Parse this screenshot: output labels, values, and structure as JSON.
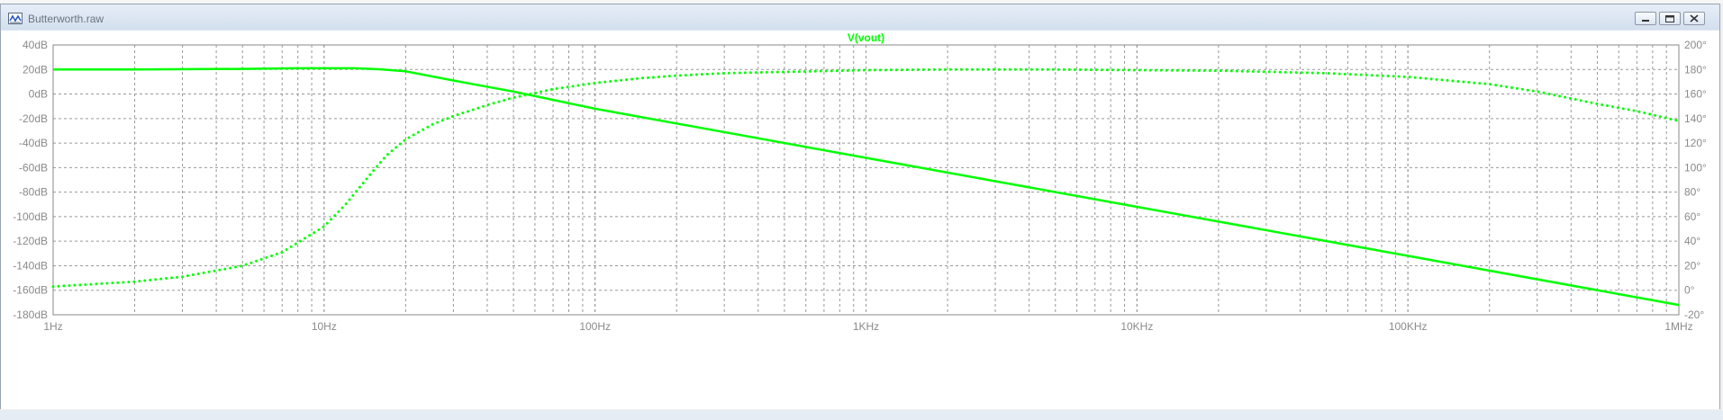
{
  "window": {
    "title": "Butterworth.raw",
    "buttons": [
      "minimize",
      "restore",
      "close"
    ],
    "icons": {
      "app": "waveform-icon",
      "minimize": "minimize-icon",
      "restore": "restore-icon",
      "close": "close-icon"
    }
  },
  "colors": {
    "trace": "#00ff00",
    "grid": "#999999",
    "axis_text": "#8a8a8a",
    "plot_bg": "#ffffff"
  },
  "chart_data": {
    "type": "line",
    "title": "V(vout)",
    "x_scale": "log",
    "xlim": [
      1,
      1000000
    ],
    "x_ticks": [
      {
        "value": 1,
        "label": "1Hz"
      },
      {
        "value": 10,
        "label": "10Hz"
      },
      {
        "value": 100,
        "label": "100Hz"
      },
      {
        "value": 1000,
        "label": "1KHz"
      },
      {
        "value": 10000,
        "label": "10KHz"
      },
      {
        "value": 100000,
        "label": "100KHz"
      },
      {
        "value": 1000000,
        "label": "1MHz"
      }
    ],
    "ylim_left": [
      -180,
      40
    ],
    "y_ticks_left": [
      "40dB",
      "20dB",
      "0dB",
      "-20dB",
      "-40dB",
      "-60dB",
      "-80dB",
      "-100dB",
      "-120dB",
      "-140dB",
      "-160dB",
      "-180dB"
    ],
    "ylim_right": [
      -20,
      200
    ],
    "y_ticks_right": [
      "200°",
      "180°",
      "160°",
      "140°",
      "120°",
      "100°",
      "80°",
      "60°",
      "40°",
      "20°",
      "0°",
      "-20°"
    ],
    "grid": true,
    "series": [
      {
        "name": "magnitude",
        "axis": "left",
        "style": "solid",
        "x": [
          1,
          2,
          5,
          8,
          10,
          13,
          16,
          20,
          30,
          50,
          100,
          1000,
          10000,
          100000,
          1000000
        ],
        "y": [
          20,
          20,
          20.5,
          21,
          21,
          21,
          20.2,
          18.5,
          11,
          2,
          -12,
          -52,
          -92,
          -132,
          -172
        ]
      },
      {
        "name": "phase",
        "axis": "right",
        "style": "dotted",
        "x": [
          1,
          2,
          3,
          5,
          7,
          10,
          12,
          15,
          17,
          20,
          25,
          30,
          40,
          50,
          70,
          100,
          150,
          200,
          300,
          500,
          1000,
          2000,
          5000,
          10000,
          20000,
          50000,
          100000,
          200000,
          300000,
          500000,
          700000,
          1000000
        ],
        "y": [
          3,
          7,
          11,
          20,
          31,
          52,
          70,
          96,
          110,
          123,
          135,
          142,
          151,
          157,
          164,
          169,
          173,
          175,
          177,
          178,
          179.5,
          180,
          180,
          179.5,
          179,
          177,
          174,
          168,
          162,
          152,
          146,
          138
        ]
      }
    ]
  }
}
